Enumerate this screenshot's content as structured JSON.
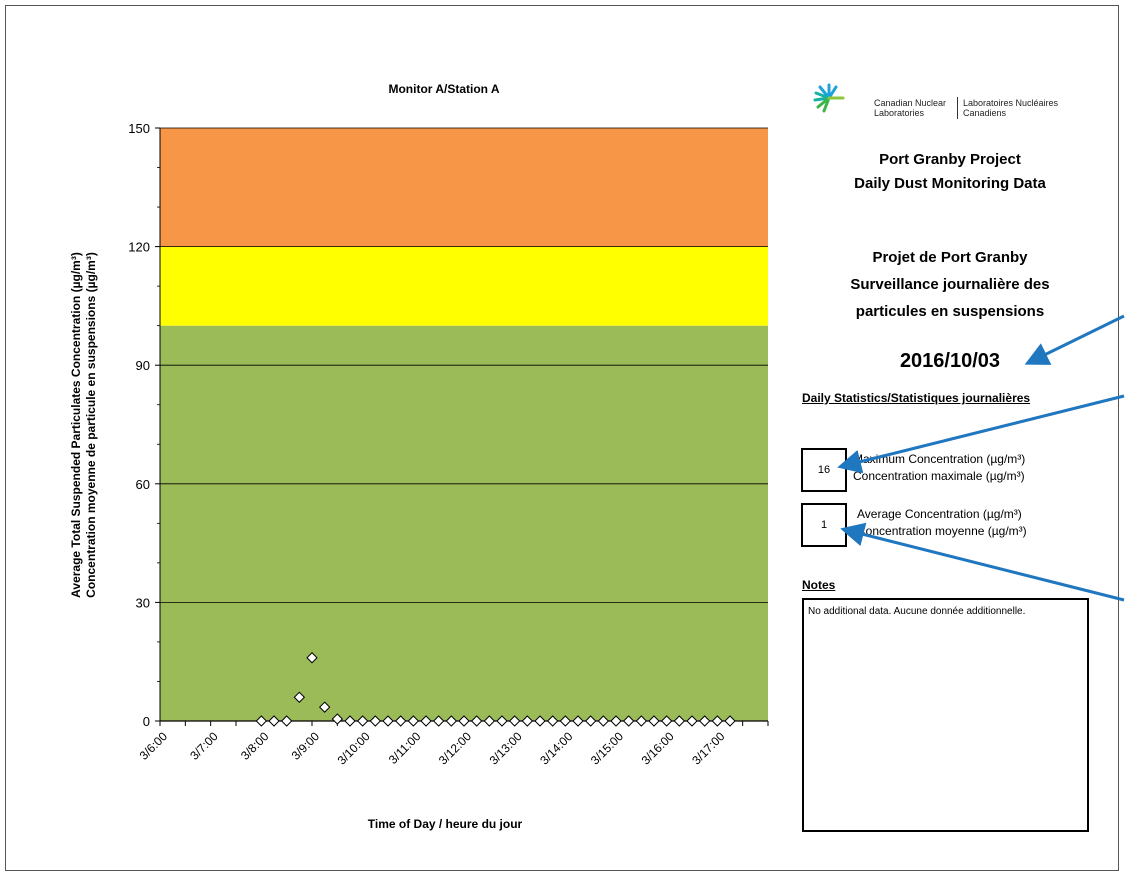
{
  "chart_data": {
    "type": "scatter",
    "title": "Monitor A/Station A",
    "xlabel": "Time of Day / heure du jour",
    "ylabel_line1": "Average Total Suspended Particulates Concentration (µg/m³)",
    "ylabel_line2": "Concentration moyenne de particule en suspensions (µg/m³)",
    "ylim": [
      0,
      150
    ],
    "yticks": [
      0,
      30,
      60,
      90,
      120,
      150
    ],
    "x_range_hours": [
      6,
      18
    ],
    "xtick_labels": [
      "3/6:00",
      "3/7:00",
      "3/8:00",
      "3/9:00",
      "3/10:00",
      "3/11:00",
      "3/12:00",
      "3/13:00",
      "3/14:00",
      "3/15:00",
      "3/16:00",
      "3/17:00"
    ],
    "bands": [
      {
        "from": 0,
        "to": 100,
        "color": "#9bbb59"
      },
      {
        "from": 100,
        "to": 120,
        "color": "#ffff00"
      },
      {
        "from": 120,
        "to": 150,
        "color": "#f79646"
      }
    ],
    "grid_lines": [
      30,
      60,
      90,
      120
    ],
    "points_x_hours": [
      8.0,
      8.25,
      8.5,
      8.75,
      9.0,
      9.25,
      9.5,
      9.75,
      10.0,
      10.25,
      10.5,
      10.75,
      11.0,
      11.25,
      11.5,
      11.75,
      12.0,
      12.25,
      12.5,
      12.75,
      13.0,
      13.25,
      13.5,
      13.75,
      14.0,
      14.25,
      14.5,
      14.75,
      15.0,
      15.25,
      15.5,
      15.75,
      16.0,
      16.25,
      16.5,
      16.75,
      17.0,
      17.25
    ],
    "points_y": [
      0,
      0,
      0,
      6,
      16,
      3.5,
      0.5,
      0,
      0,
      0,
      0,
      0,
      0,
      0,
      0,
      0,
      0,
      0,
      0,
      0,
      0,
      0,
      0,
      0,
      0,
      0,
      0,
      0,
      0,
      0,
      0,
      0,
      0,
      0,
      0,
      0,
      0,
      0
    ],
    "grid": "horizontal"
  },
  "logo": {
    "name_en_line1": "Canadian Nuclear",
    "name_en_line2": "Laboratories",
    "name_fr_line1": "Laboratoires Nucléaires",
    "name_fr_line2": "Canadiens"
  },
  "header": {
    "title_en_line1": "Port Granby Project",
    "title_en_line2": "Daily Dust Monitoring Data",
    "title_fr_line1": "Projet de Port Granby",
    "title_fr_line2": "Surveillance journalière des",
    "title_fr_line3": "particules en suspensions",
    "date": "2016/10/03"
  },
  "stats": {
    "heading": "Daily Statistics/Statistiques journalières",
    "max_value": "16",
    "max_label_en": "Maximum Concentration (µg/m³)",
    "max_label_fr": "Concentration maximale (µg/m³)",
    "avg_value": "1",
    "avg_label_en": "Average Concentration (µg/m³)",
    "avg_label_fr": "Concentration moyenne (µg/m³)"
  },
  "notes": {
    "heading": "Notes",
    "text": "No additional data.  Aucune donnée additionnelle."
  },
  "colors": {
    "arrow": "#1f77c0"
  }
}
